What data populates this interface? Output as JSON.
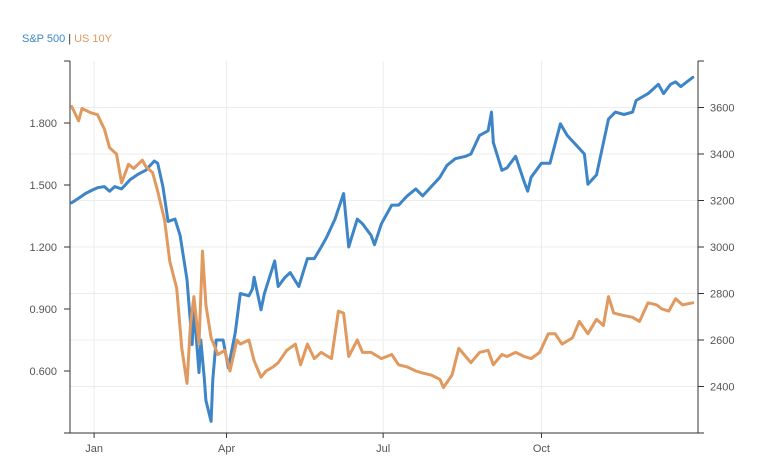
{
  "chart_data": {
    "type": "line",
    "title": "",
    "legend": {
      "placement": "top-left",
      "separator": "|",
      "entries": [
        {
          "name": "S&P 500",
          "color": "#3d85c6"
        },
        {
          "name": "US 10Y",
          "color": "#e0995e"
        }
      ]
    },
    "x_axis": {
      "type": "date",
      "range": [
        "2020-01-01",
        "2020-12-31"
      ],
      "ticks": [
        {
          "date": "2020-01-15",
          "label": "Jan"
        },
        {
          "date": "2020-04-01",
          "label": "Apr"
        },
        {
          "date": "2020-07-01",
          "label": "Jul"
        },
        {
          "date": "2020-10-01",
          "label": "Oct"
        }
      ]
    },
    "y_left": {
      "series": "US 10Y",
      "range": [
        0.3,
        2.1
      ],
      "ticks": [
        {
          "value": 0.6,
          "label": "0.600"
        },
        {
          "value": 0.9,
          "label": "0.900"
        },
        {
          "value": 1.2,
          "label": "1.200"
        },
        {
          "value": 1.5,
          "label": "1.500"
        },
        {
          "value": 1.8,
          "label": "1.800"
        }
      ]
    },
    "y_right": {
      "series": "S&P 500",
      "range": [
        2200,
        3800
      ],
      "ticks": [
        {
          "value": 2400,
          "label": "2400"
        },
        {
          "value": 2600,
          "label": "2600"
        },
        {
          "value": 2800,
          "label": "2800"
        },
        {
          "value": 3000,
          "label": "3000"
        },
        {
          "value": 3200,
          "label": "3200"
        },
        {
          "value": 3400,
          "label": "3400"
        },
        {
          "value": 3600,
          "label": "3600"
        }
      ]
    },
    "grid": true,
    "series": [
      {
        "name": "S&P 500",
        "axis": "right",
        "color": "#3d85c6",
        "points": [
          [
            "2020-01-02",
            3190
          ],
          [
            "2020-01-06",
            3210
          ],
          [
            "2020-01-10",
            3230
          ],
          [
            "2020-01-14",
            3245
          ],
          [
            "2020-01-17",
            3255
          ],
          [
            "2020-01-21",
            3260
          ],
          [
            "2020-01-24",
            3240
          ],
          [
            "2020-01-27",
            3260
          ],
          [
            "2020-01-31",
            3250
          ],
          [
            "2020-02-05",
            3290
          ],
          [
            "2020-02-10",
            3315
          ],
          [
            "2020-02-14",
            3330
          ],
          [
            "2020-02-19",
            3370
          ],
          [
            "2020-02-21",
            3360
          ],
          [
            "2020-02-24",
            3260
          ],
          [
            "2020-02-27",
            3110
          ],
          [
            "2020-03-02",
            3120
          ],
          [
            "2020-03-05",
            3050
          ],
          [
            "2020-03-09",
            2860
          ],
          [
            "2020-03-12",
            2580
          ],
          [
            "2020-03-13",
            2740
          ],
          [
            "2020-03-16",
            2460
          ],
          [
            "2020-03-17",
            2600
          ],
          [
            "2020-03-19",
            2440
          ],
          [
            "2020-03-20",
            2340
          ],
          [
            "2020-03-23",
            2250
          ],
          [
            "2020-03-24",
            2430
          ],
          [
            "2020-03-26",
            2600
          ],
          [
            "2020-03-30",
            2600
          ],
          [
            "2020-04-02",
            2480
          ],
          [
            "2020-04-06",
            2630
          ],
          [
            "2020-04-09",
            2800
          ],
          [
            "2020-04-14",
            2790
          ],
          [
            "2020-04-16",
            2820
          ],
          [
            "2020-04-17",
            2870
          ],
          [
            "2020-04-21",
            2730
          ],
          [
            "2020-04-23",
            2800
          ],
          [
            "2020-04-29",
            2940
          ],
          [
            "2020-05-01",
            2830
          ],
          [
            "2020-05-05",
            2870
          ],
          [
            "2020-05-08",
            2890
          ],
          [
            "2020-05-13",
            2830
          ],
          [
            "2020-05-18",
            2950
          ],
          [
            "2020-05-22",
            2950
          ],
          [
            "2020-05-26",
            3000
          ],
          [
            "2020-05-29",
            3040
          ],
          [
            "2020-06-03",
            3120
          ],
          [
            "2020-06-08",
            3230
          ],
          [
            "2020-06-11",
            3000
          ],
          [
            "2020-06-16",
            3120
          ],
          [
            "2020-06-19",
            3100
          ],
          [
            "2020-06-24",
            3050
          ],
          [
            "2020-06-26",
            3010
          ],
          [
            "2020-06-30",
            3100
          ],
          [
            "2020-07-06",
            3180
          ],
          [
            "2020-07-10",
            3180
          ],
          [
            "2020-07-15",
            3220
          ],
          [
            "2020-07-20",
            3250
          ],
          [
            "2020-07-24",
            3220
          ],
          [
            "2020-07-29",
            3260
          ],
          [
            "2020-08-03",
            3300
          ],
          [
            "2020-08-07",
            3350
          ],
          [
            "2020-08-12",
            3380
          ],
          [
            "2020-08-18",
            3390
          ],
          [
            "2020-08-21",
            3400
          ],
          [
            "2020-08-26",
            3480
          ],
          [
            "2020-08-31",
            3500
          ],
          [
            "2020-09-02",
            3580
          ],
          [
            "2020-09-03",
            3450
          ],
          [
            "2020-09-08",
            3330
          ],
          [
            "2020-09-11",
            3340
          ],
          [
            "2020-09-16",
            3390
          ],
          [
            "2020-09-21",
            3280
          ],
          [
            "2020-09-23",
            3240
          ],
          [
            "2020-09-25",
            3300
          ],
          [
            "2020-10-01",
            3360
          ],
          [
            "2020-10-06",
            3360
          ],
          [
            "2020-10-12",
            3530
          ],
          [
            "2020-10-16",
            3480
          ],
          [
            "2020-10-21",
            3440
          ],
          [
            "2020-10-26",
            3400
          ],
          [
            "2020-10-28",
            3270
          ],
          [
            "2020-11-02",
            3310
          ],
          [
            "2020-11-09",
            3550
          ],
          [
            "2020-11-13",
            3580
          ],
          [
            "2020-11-18",
            3570
          ],
          [
            "2020-11-23",
            3580
          ],
          [
            "2020-11-25",
            3630
          ],
          [
            "2020-12-02",
            3660
          ],
          [
            "2020-12-08",
            3700
          ],
          [
            "2020-12-11",
            3660
          ],
          [
            "2020-12-15",
            3700
          ],
          [
            "2020-12-18",
            3710
          ],
          [
            "2020-12-21",
            3690
          ],
          [
            "2020-12-28",
            3730
          ]
        ]
      },
      {
        "name": "US 10Y",
        "axis": "left",
        "color": "#e0995e",
        "points": [
          [
            "2020-01-02",
            1.88
          ],
          [
            "2020-01-06",
            1.81
          ],
          [
            "2020-01-08",
            1.87
          ],
          [
            "2020-01-13",
            1.85
          ],
          [
            "2020-01-17",
            1.84
          ],
          [
            "2020-01-21",
            1.77
          ],
          [
            "2020-01-24",
            1.68
          ],
          [
            "2020-01-28",
            1.65
          ],
          [
            "2020-01-31",
            1.51
          ],
          [
            "2020-02-04",
            1.6
          ],
          [
            "2020-02-07",
            1.58
          ],
          [
            "2020-02-12",
            1.62
          ],
          [
            "2020-02-14",
            1.59
          ],
          [
            "2020-02-18",
            1.56
          ],
          [
            "2020-02-21",
            1.47
          ],
          [
            "2020-02-25",
            1.33
          ],
          [
            "2020-02-28",
            1.13
          ],
          [
            "2020-03-03",
            1.0
          ],
          [
            "2020-03-06",
            0.71
          ],
          [
            "2020-03-09",
            0.54
          ],
          [
            "2020-03-11",
            0.82
          ],
          [
            "2020-03-13",
            0.96
          ],
          [
            "2020-03-16",
            0.73
          ],
          [
            "2020-03-18",
            1.18
          ],
          [
            "2020-03-20",
            0.92
          ],
          [
            "2020-03-23",
            0.76
          ],
          [
            "2020-03-27",
            0.68
          ],
          [
            "2020-03-31",
            0.7
          ],
          [
            "2020-04-03",
            0.6
          ],
          [
            "2020-04-07",
            0.75
          ],
          [
            "2020-04-09",
            0.73
          ],
          [
            "2020-04-14",
            0.75
          ],
          [
            "2020-04-17",
            0.65
          ],
          [
            "2020-04-21",
            0.57
          ],
          [
            "2020-04-24",
            0.6
          ],
          [
            "2020-04-28",
            0.62
          ],
          [
            "2020-05-01",
            0.64
          ],
          [
            "2020-05-06",
            0.7
          ],
          [
            "2020-05-11",
            0.73
          ],
          [
            "2020-05-14",
            0.63
          ],
          [
            "2020-05-18",
            0.73
          ],
          [
            "2020-05-22",
            0.66
          ],
          [
            "2020-05-26",
            0.69
          ],
          [
            "2020-06-01",
            0.66
          ],
          [
            "2020-06-05",
            0.89
          ],
          [
            "2020-06-08",
            0.88
          ],
          [
            "2020-06-11",
            0.67
          ],
          [
            "2020-06-16",
            0.75
          ],
          [
            "2020-06-19",
            0.69
          ],
          [
            "2020-06-24",
            0.69
          ],
          [
            "2020-06-30",
            0.66
          ],
          [
            "2020-07-06",
            0.68
          ],
          [
            "2020-07-10",
            0.63
          ],
          [
            "2020-07-15",
            0.62
          ],
          [
            "2020-07-20",
            0.6
          ],
          [
            "2020-07-24",
            0.59
          ],
          [
            "2020-07-29",
            0.58
          ],
          [
            "2020-08-03",
            0.56
          ],
          [
            "2020-08-05",
            0.52
          ],
          [
            "2020-08-10",
            0.58
          ],
          [
            "2020-08-14",
            0.71
          ],
          [
            "2020-08-18",
            0.67
          ],
          [
            "2020-08-21",
            0.64
          ],
          [
            "2020-08-26",
            0.69
          ],
          [
            "2020-08-31",
            0.7
          ],
          [
            "2020-09-03",
            0.63
          ],
          [
            "2020-09-08",
            0.68
          ],
          [
            "2020-09-11",
            0.67
          ],
          [
            "2020-09-16",
            0.69
          ],
          [
            "2020-09-21",
            0.67
          ],
          [
            "2020-09-25",
            0.66
          ],
          [
            "2020-09-30",
            0.69
          ],
          [
            "2020-10-05",
            0.78
          ],
          [
            "2020-10-09",
            0.78
          ],
          [
            "2020-10-13",
            0.73
          ],
          [
            "2020-10-19",
            0.76
          ],
          [
            "2020-10-23",
            0.84
          ],
          [
            "2020-10-28",
            0.78
          ],
          [
            "2020-11-02",
            0.85
          ],
          [
            "2020-11-06",
            0.82
          ],
          [
            "2020-11-09",
            0.96
          ],
          [
            "2020-11-12",
            0.88
          ],
          [
            "2020-11-17",
            0.87
          ],
          [
            "2020-11-23",
            0.86
          ],
          [
            "2020-11-27",
            0.84
          ],
          [
            "2020-12-02",
            0.93
          ],
          [
            "2020-12-07",
            0.92
          ],
          [
            "2020-12-10",
            0.9
          ],
          [
            "2020-12-14",
            0.89
          ],
          [
            "2020-12-18",
            0.95
          ],
          [
            "2020-12-22",
            0.92
          ],
          [
            "2020-12-28",
            0.93
          ]
        ]
      }
    ]
  }
}
